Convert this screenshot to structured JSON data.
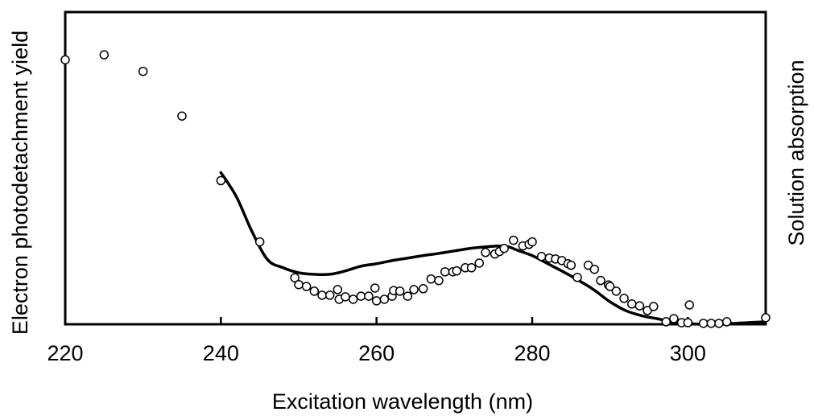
{
  "chart_data": {
    "type": "scatter",
    "title": "",
    "xlabel": "Excitation wavelength (nm)",
    "ylabel_left": "Electron photodetachment yield",
    "ylabel_right": "Solution absorption",
    "xlim": [
      220,
      310
    ],
    "ylim": [
      0,
      1
    ],
    "x_ticks": [
      220,
      240,
      260,
      280,
      300
    ],
    "y_tick_labels_shown": false,
    "grid": false,
    "legend": "none",
    "series": [
      {
        "kind": "scatter",
        "marker": "open-circle",
        "color": "#000000",
        "points": [
          [
            220,
            0.847
          ],
          [
            225,
            0.863
          ],
          [
            230,
            0.81
          ],
          [
            235,
            0.667
          ],
          [
            240,
            0.46
          ],
          [
            245,
            0.264
          ],
          [
            249.5,
            0.149
          ],
          [
            250,
            0.127
          ],
          [
            251,
            0.121
          ],
          [
            252,
            0.106
          ],
          [
            253,
            0.093
          ],
          [
            254,
            0.093
          ],
          [
            255,
            0.111
          ],
          [
            255.2,
            0.08
          ],
          [
            256,
            0.088
          ],
          [
            257,
            0.08
          ],
          [
            258,
            0.09
          ],
          [
            259,
            0.09
          ],
          [
            259.8,
            0.116
          ],
          [
            260,
            0.075
          ],
          [
            261,
            0.08
          ],
          [
            262,
            0.09
          ],
          [
            262.2,
            0.108
          ],
          [
            263,
            0.106
          ],
          [
            264,
            0.09
          ],
          [
            264.8,
            0.111
          ],
          [
            266,
            0.114
          ],
          [
            267,
            0.145
          ],
          [
            268,
            0.14
          ],
          [
            268.8,
            0.168
          ],
          [
            269.8,
            0.168
          ],
          [
            270.3,
            0.171
          ],
          [
            271.4,
            0.181
          ],
          [
            272.2,
            0.181
          ],
          [
            273.2,
            0.196
          ],
          [
            274,
            0.23
          ],
          [
            275.2,
            0.225
          ],
          [
            275.8,
            0.233
          ],
          [
            276.4,
            0.243
          ],
          [
            277.6,
            0.269
          ],
          [
            278.8,
            0.251
          ],
          [
            279.6,
            0.256
          ],
          [
            280,
            0.264
          ],
          [
            281.2,
            0.217
          ],
          [
            282.2,
            0.212
          ],
          [
            283,
            0.209
          ],
          [
            283.8,
            0.204
          ],
          [
            284.6,
            0.194
          ],
          [
            285,
            0.189
          ],
          [
            285.8,
            0.15
          ],
          [
            287.2,
            0.189
          ],
          [
            288,
            0.176
          ],
          [
            288.8,
            0.14
          ],
          [
            289.8,
            0.126
          ],
          [
            290,
            0.121
          ],
          [
            290.8,
            0.106
          ],
          [
            291.8,
            0.083
          ],
          [
            292.8,
            0.065
          ],
          [
            293.8,
            0.059
          ],
          [
            294.8,
            0.044
          ],
          [
            295.6,
            0.057
          ],
          [
            297.2,
            0.008
          ],
          [
            298.2,
            0.018
          ],
          [
            299.2,
            0.005
          ],
          [
            300,
            0.005
          ],
          [
            300.2,
            0.062
          ],
          [
            302,
            0.003
          ],
          [
            303,
            0.003
          ],
          [
            304,
            0.003
          ],
          [
            305,
            0.008
          ],
          [
            310,
            0.021
          ]
        ]
      },
      {
        "kind": "line",
        "color": "#000000",
        "points": [
          [
            240,
            0.486
          ],
          [
            242,
            0.408
          ],
          [
            244,
            0.297
          ],
          [
            246,
            0.207
          ],
          [
            248,
            0.181
          ],
          [
            250,
            0.165
          ],
          [
            252,
            0.16
          ],
          [
            254,
            0.16
          ],
          [
            256,
            0.171
          ],
          [
            258,
            0.186
          ],
          [
            260,
            0.194
          ],
          [
            262,
            0.204
          ],
          [
            264,
            0.212
          ],
          [
            266,
            0.22
          ],
          [
            268,
            0.227
          ],
          [
            270,
            0.235
          ],
          [
            272,
            0.243
          ],
          [
            274,
            0.248
          ],
          [
            276,
            0.251
          ],
          [
            277,
            0.248
          ],
          [
            278,
            0.238
          ],
          [
            280,
            0.22
          ],
          [
            282,
            0.194
          ],
          [
            284,
            0.168
          ],
          [
            286,
            0.14
          ],
          [
            288,
            0.109
          ],
          [
            290,
            0.072
          ],
          [
            292,
            0.044
          ],
          [
            294,
            0.028
          ],
          [
            296,
            0.018
          ],
          [
            298,
            0.008
          ],
          [
            300,
            0.003
          ],
          [
            302,
            0.0
          ],
          [
            306,
            0.003
          ],
          [
            310,
            0.008
          ]
        ]
      }
    ]
  }
}
